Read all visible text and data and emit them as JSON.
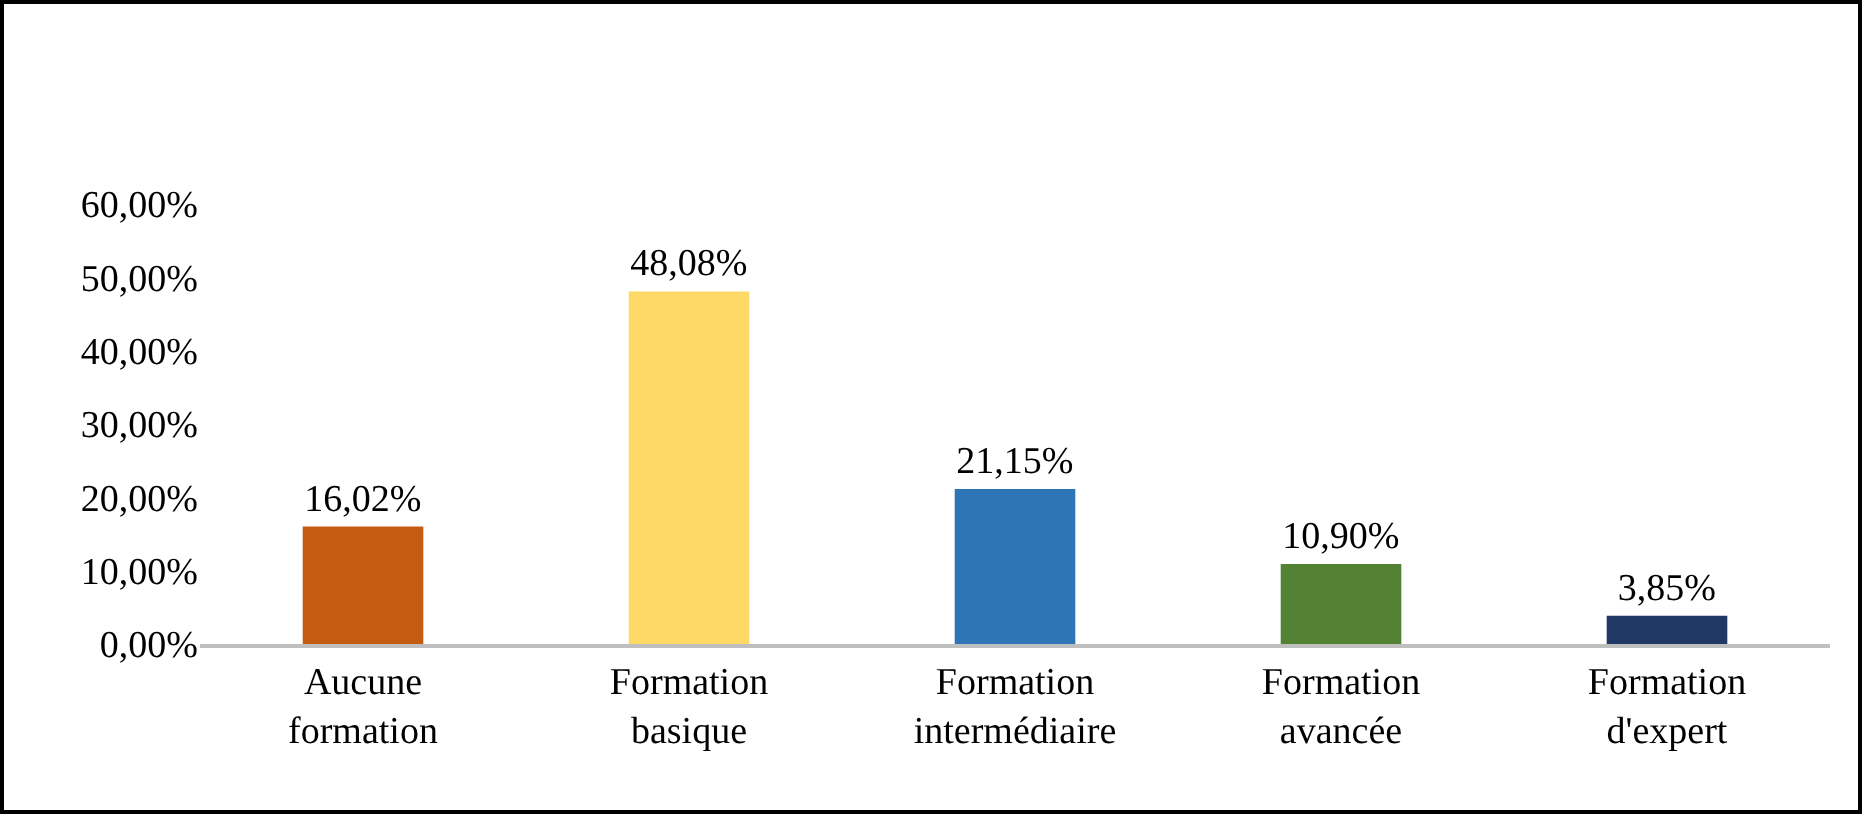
{
  "chart_data": {
    "type": "bar",
    "categories": [
      "Aucune formation",
      "Formation basique",
      "Formation intermédiaire",
      "Formation avancée",
      "Formation d'expert"
    ],
    "values": [
      16.02,
      48.08,
      21.15,
      10.9,
      3.85
    ],
    "colors": [
      "#c55a11",
      "#ffd966",
      "#2e75b6",
      "#548235",
      "#203864"
    ],
    "value_labels": [
      "16,02%",
      "48,08%",
      "21,15%",
      "10,90%",
      "3,85%"
    ],
    "ylim": [
      0,
      60
    ],
    "yticks": [
      {
        "value": 0,
        "label": "0,00%"
      },
      {
        "value": 10,
        "label": "10,00%"
      },
      {
        "value": 20,
        "label": "20,00%"
      },
      {
        "value": 30,
        "label": "30,00%"
      },
      {
        "value": 40,
        "label": "40,00%"
      },
      {
        "value": 50,
        "label": "50,00%"
      },
      {
        "value": 60,
        "label": "60,00%"
      }
    ],
    "grid": false,
    "legend": false
  }
}
